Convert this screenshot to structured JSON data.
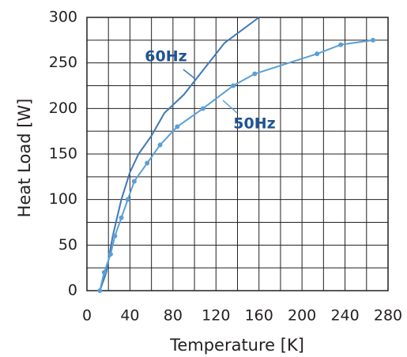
{
  "chart_data": {
    "type": "line",
    "x_label": "Temperature [K]",
    "y_label": "Heat Load [W]",
    "xlim": [
      0,
      280
    ],
    "xticks": [
      0,
      40,
      80,
      120,
      160,
      200,
      240,
      280
    ],
    "ylim": [
      0,
      300
    ],
    "yticks": [
      0,
      50,
      100,
      150,
      200,
      250,
      300
    ],
    "grid": true,
    "series": [
      {
        "name": "60Hz",
        "color": "#3d78b8",
        "label_color": "#1f5496",
        "markers": false,
        "x": [
          12,
          18,
          24,
          32,
          40,
          48,
          60,
          72,
          90,
          128,
          160
        ],
        "values": [
          0,
          20,
          60,
          100,
          130,
          150,
          170,
          195,
          215,
          272,
          300
        ]
      },
      {
        "name": "50Hz",
        "color": "#5aa0d6",
        "label_color": "#1f5496",
        "markers": true,
        "x": [
          12,
          16,
          22,
          26,
          32,
          38,
          44,
          56,
          68,
          84,
          108,
          136,
          156,
          214,
          236,
          266
        ],
        "values": [
          0,
          20,
          40,
          60,
          80,
          100,
          120,
          140,
          160,
          180,
          200,
          225,
          238,
          260,
          270,
          275
        ]
      }
    ]
  }
}
